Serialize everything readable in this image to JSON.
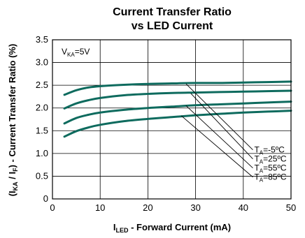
{
  "chart_data": {
    "type": "line",
    "title": "Current Transfer Ratio",
    "subtitle": "vs LED Current",
    "xlabel_main": "I",
    "xlabel_sub": "LED",
    "xlabel_rest": " - Forward Current (mA)",
    "ylabel_parts": [
      "(I",
      "KA",
      " / I",
      "F",
      ") - Current Transfer Ratio (%)"
    ],
    "condition_main": "V",
    "condition_sub": "KA",
    "condition_rest": "=5V",
    "xlim": [
      0,
      50
    ],
    "ylim": [
      0,
      3.5
    ],
    "x_ticks": [
      0,
      10,
      20,
      30,
      40,
      50
    ],
    "y_ticks": [
      0,
      0.5,
      1.0,
      1.5,
      2.0,
      2.5,
      3.0,
      3.5
    ],
    "x_tick_labels": [
      "0",
      "10",
      "20",
      "30",
      "40",
      "50"
    ],
    "y_tick_labels": [
      "0",
      "0.5",
      "1.0",
      "1.5",
      "2.0",
      "2.5",
      "3.0",
      "3.5"
    ],
    "grid": true,
    "line_color": "#0e6b5e",
    "series": [
      {
        "name": "T_A=-5°C",
        "label_main": "T",
        "label_sub": "A",
        "label_rest": "=-5ºC",
        "x": [
          2.5,
          5,
          7.5,
          10,
          15,
          20,
          25,
          30,
          35,
          40,
          45,
          50
        ],
        "y": [
          2.29,
          2.39,
          2.45,
          2.48,
          2.51,
          2.53,
          2.54,
          2.55,
          2.55,
          2.56,
          2.57,
          2.58
        ]
      },
      {
        "name": "T_A=25°C",
        "label_main": "T",
        "label_sub": "A",
        "label_rest": "=25ºC",
        "x": [
          2.5,
          5,
          7.5,
          10,
          15,
          20,
          25,
          30,
          35,
          40,
          45,
          50
        ],
        "y": [
          1.99,
          2.1,
          2.17,
          2.22,
          2.28,
          2.31,
          2.33,
          2.34,
          2.35,
          2.36,
          2.37,
          2.38
        ]
      },
      {
        "name": "T_A=55°C",
        "label_main": "T",
        "label_sub": "A",
        "label_rest": "=55ºC",
        "x": [
          2.5,
          5,
          7.5,
          10,
          15,
          20,
          25,
          30,
          35,
          40,
          45,
          50
        ],
        "y": [
          1.66,
          1.78,
          1.85,
          1.9,
          1.96,
          2.0,
          2.03,
          2.06,
          2.08,
          2.1,
          2.12,
          2.14
        ]
      },
      {
        "name": "T_A=85°C",
        "label_main": "T",
        "label_sub": "A",
        "label_rest": "=85ºC",
        "x": [
          2.5,
          5,
          7.5,
          10,
          15,
          20,
          25,
          30,
          35,
          40,
          45,
          50
        ],
        "y": [
          1.37,
          1.49,
          1.57,
          1.63,
          1.71,
          1.76,
          1.8,
          1.84,
          1.87,
          1.9,
          1.92,
          1.94
        ]
      }
    ],
    "leader_lines": [
      {
        "from": [
          28,
          2.53
        ],
        "to": [
          42,
          1.08
        ]
      },
      {
        "from": [
          29,
          2.32
        ],
        "to": [
          42,
          0.88
        ]
      },
      {
        "from": [
          28,
          2.05
        ],
        "to": [
          42,
          0.68
        ]
      },
      {
        "from": [
          27,
          1.83
        ],
        "to": [
          42,
          0.48
        ]
      }
    ],
    "legend_placement": "lower-right"
  }
}
